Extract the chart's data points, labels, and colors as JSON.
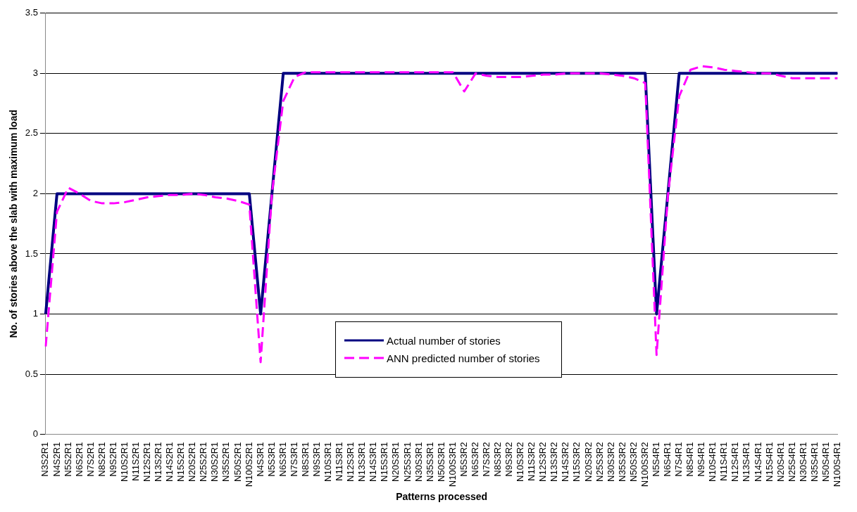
{
  "chart_data": {
    "type": "line",
    "xlabel": "Patterns processed",
    "ylabel": "No. of stories above the slab with maximum load",
    "categories": [
      "N3S2R1",
      "N4S2R1",
      "N5S2R1",
      "N6S2R1",
      "N7S2R1",
      "N8S2R1",
      "N9S2R1",
      "N10S2R1",
      "N11S2R1",
      "N12S2R1",
      "N13S2R1",
      "N14S2R1",
      "N15S2R1",
      "N20S2R1",
      "N25S2R1",
      "N30S2R1",
      "N35S2R1",
      "N50S2R1",
      "N100S2R1",
      "N4S3R1",
      "N5S3R1",
      "N6S3R1",
      "N7S3R1",
      "N8S3R1",
      "N9S3R1",
      "N10S3R1",
      "N11S3R1",
      "N12S3R1",
      "N13S3R1",
      "N14S3R1",
      "N15S3R1",
      "N20S3R1",
      "N25S3R1",
      "N30S3R1",
      "N35S3R1",
      "N50S3R1",
      "N100S3R1",
      "N5S3R2",
      "N6S3R2",
      "N7S3R2",
      "N8S3R2",
      "N9S3R2",
      "N10S3R2",
      "N11S3R2",
      "N12S3R2",
      "N13S3R2",
      "N14S3R2",
      "N15S3R2",
      "N20S3R2",
      "N25S3R2",
      "N30S3R2",
      "N35S3R2",
      "N50S3R2",
      "N100S3R2",
      "N5S4R1",
      "N6S4R1",
      "N7S4R1",
      "N8S4R1",
      "N9S4R1",
      "N10S4R1",
      "N11S4R1",
      "N12S4R1",
      "N13S4R1",
      "N14S4R1",
      "N15S4R1",
      "N20S4R1",
      "N25S4R1",
      "N30S4R1",
      "N35S4R1",
      "N50S4R1",
      "N100S4R1"
    ],
    "series": [
      {
        "name": "Actual number of stories",
        "color": "#000080",
        "line_style": "solid",
        "values": [
          1,
          2,
          2,
          2,
          2,
          2,
          2,
          2,
          2,
          2,
          2,
          2,
          2,
          2,
          2,
          2,
          2,
          2,
          2,
          1,
          2,
          3,
          3,
          3,
          3,
          3,
          3,
          3,
          3,
          3,
          3,
          3,
          3,
          3,
          3,
          3,
          3,
          3,
          3,
          3,
          3,
          3,
          3,
          3,
          3,
          3,
          3,
          3,
          3,
          3,
          3,
          3,
          3,
          3,
          1,
          2,
          3,
          3,
          3,
          3,
          3,
          3,
          3,
          3,
          3,
          3,
          3,
          3,
          3,
          3,
          3
        ]
      },
      {
        "name": "ANN predicted number of stories",
        "color": "#ff00ff",
        "line_style": "dashed",
        "values": [
          0.73,
          1.85,
          2.05,
          2.0,
          1.94,
          1.92,
          1.92,
          1.93,
          1.95,
          1.97,
          1.98,
          1.99,
          1.99,
          2.0,
          1.99,
          1.97,
          1.96,
          1.94,
          1.91,
          0.6,
          2.0,
          2.77,
          2.97,
          3.01,
          3.01,
          3.01,
          3.01,
          3.01,
          3.01,
          3.01,
          3.01,
          3.01,
          3.01,
          3.01,
          3.01,
          3.01,
          3.01,
          2.85,
          3.0,
          2.98,
          2.97,
          2.97,
          2.97,
          2.98,
          2.99,
          2.99,
          3.0,
          3.0,
          3.0,
          3.0,
          2.99,
          2.98,
          2.96,
          2.92,
          0.66,
          1.98,
          2.81,
          3.03,
          3.06,
          3.05,
          3.03,
          3.02,
          3.01,
          3.0,
          3.0,
          2.98,
          2.96,
          2.96,
          2.96,
          2.96,
          2.96
        ]
      }
    ],
    "ylim": [
      0,
      3.5
    ],
    "yticks": [
      0,
      0.5,
      1,
      1.5,
      2,
      2.5,
      3,
      3.5
    ],
    "grid": "y",
    "legend": "bottom",
    "marker": "none"
  }
}
